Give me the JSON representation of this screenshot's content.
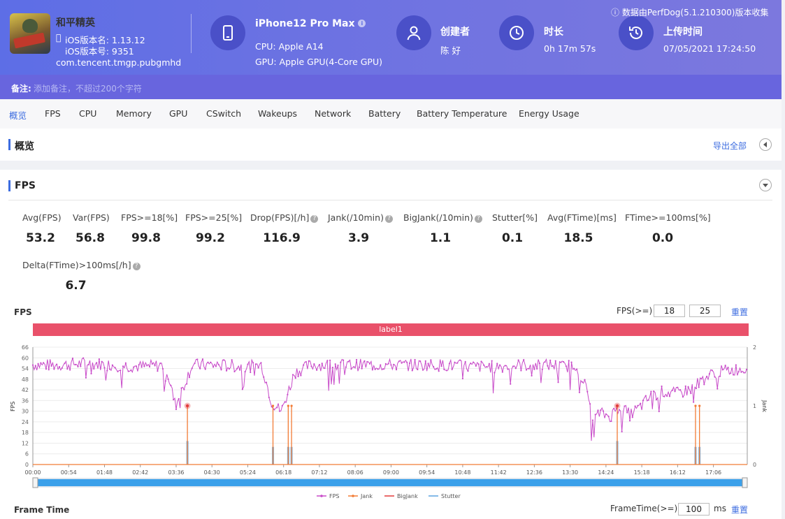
{
  "app": {
    "name": "和平精英",
    "version_name": "iOS版本名: 1.13.12",
    "version_code": "iOS版本号: 9351",
    "package": "com.tencent.tmgp.pubgmhd"
  },
  "device": {
    "name": "iPhone12 Pro Max",
    "cpu": "CPU: Apple A14",
    "gpu": "GPU: Apple GPU(4-Core GPU)"
  },
  "creator": {
    "label": "创建者",
    "value": "陈 好"
  },
  "duration": {
    "label": "时长",
    "value": "0h 17m 57s"
  },
  "upload": {
    "label": "上传时间",
    "value": "07/05/2021 17:24:50"
  },
  "source_note": "数据由PerfDog(5.1.210300)版本收集",
  "note": {
    "label": "备注:",
    "placeholder": "添加备注，不超过200个字符"
  },
  "tabs": [
    "概览",
    "FPS",
    "CPU",
    "Memory",
    "GPU",
    "CSwitch",
    "Wakeups",
    "Network",
    "Battery",
    "Battery Temperature",
    "Energy Usage"
  ],
  "overview": {
    "title": "概览",
    "export_label": "导出全部"
  },
  "fps_section": {
    "title": "FPS",
    "stats": [
      {
        "label": "Avg(FPS)",
        "value": "53.2"
      },
      {
        "label": "Var(FPS)",
        "value": "56.8"
      },
      {
        "label": "FPS>=18[%]",
        "value": "99.8"
      },
      {
        "label": "FPS>=25[%]",
        "value": "99.2"
      },
      {
        "label": "Drop(FPS)[/h]",
        "value": "116.9"
      },
      {
        "label": "Jank(/10min)",
        "value": "3.9"
      },
      {
        "label": "BigJank(/10min)",
        "value": "1.1"
      },
      {
        "label": "Stutter[%]",
        "value": "0.1"
      },
      {
        "label": "Avg(FTime)[ms]",
        "value": "18.5"
      },
      {
        "label": "FTime>=100ms[%]",
        "value": "0.0"
      },
      {
        "label": "Delta(FTime)>100ms[/h]",
        "value": "6.7"
      }
    ],
    "chart_title": "FPS",
    "threshold_label": "FPS(>=)",
    "threshold_1": "18",
    "threshold_2": "25",
    "reset_label": "重置",
    "band_label": "label1"
  },
  "frame_time": {
    "title": "Frame Time",
    "threshold_label": "FrameTime(>=)",
    "threshold_value": "100",
    "unit": "ms",
    "reset_label": "重置"
  },
  "colors": {
    "fps": "#c84bc9",
    "jank": "#f27c36",
    "bigjank": "#e23b3b",
    "stutter": "#5aa3e0",
    "accent": "#3c6ce0",
    "band": "#e9516a"
  },
  "chart_data": {
    "type": "line",
    "x_label_ticks": [
      "00:00",
      "00:54",
      "01:48",
      "02:42",
      "03:36",
      "04:30",
      "05:24",
      "06:18",
      "07:12",
      "08:06",
      "09:00",
      "09:54",
      "10:48",
      "11:42",
      "12:36",
      "13:30",
      "14:24",
      "15:18",
      "16:12",
      "17:06"
    ],
    "x_range_s": [
      0,
      1077
    ],
    "ylabel": "FPS",
    "y2label": "Jank",
    "ylim": [
      0,
      66
    ],
    "yticks": [
      0,
      6,
      12,
      18,
      24,
      30,
      36,
      42,
      48,
      54,
      60,
      66
    ],
    "y2lim": [
      0,
      2
    ],
    "y2ticks": [
      0,
      1,
      2
    ],
    "legend": [
      "FPS",
      "Jank",
      "BigJank",
      "Stutter"
    ],
    "legend_position": "bottom",
    "series": [
      {
        "name": "FPS",
        "x_s": [
          0,
          40,
          80,
          120,
          160,
          200,
          215,
          240,
          280,
          320,
          345,
          360,
          375,
          395,
          420,
          460,
          500,
          540,
          580,
          620,
          660,
          700,
          740,
          780,
          800,
          820,
          835,
          845,
          855,
          870,
          885,
          900,
          915,
          930,
          950,
          970,
          990,
          1010,
          1030,
          1050,
          1077
        ],
        "values": [
          56,
          56,
          57,
          56,
          55,
          56,
          33,
          56,
          56,
          55,
          56,
          35,
          30,
          52,
          56,
          56,
          56,
          56,
          56,
          56,
          55,
          55,
          56,
          56,
          55,
          56,
          42,
          25,
          29,
          27,
          33,
          28,
          32,
          38,
          41,
          40,
          42,
          48,
          52,
          53,
          54
        ]
      },
      {
        "name": "Jank",
        "x_s": [
          233,
          362,
          385,
          390,
          881,
          999,
          1005
        ],
        "values": [
          1,
          1,
          1,
          1,
          1,
          1,
          1
        ]
      },
      {
        "name": "BigJank",
        "x_s": [
          233,
          881
        ],
        "values": [
          1,
          1
        ]
      },
      {
        "name": "Stutter",
        "x_s": [
          233,
          362,
          385,
          390,
          881,
          999,
          1005
        ],
        "values": [
          0.4,
          0.3,
          0.3,
          0.3,
          0.4,
          0.3,
          0.3
        ]
      }
    ]
  }
}
